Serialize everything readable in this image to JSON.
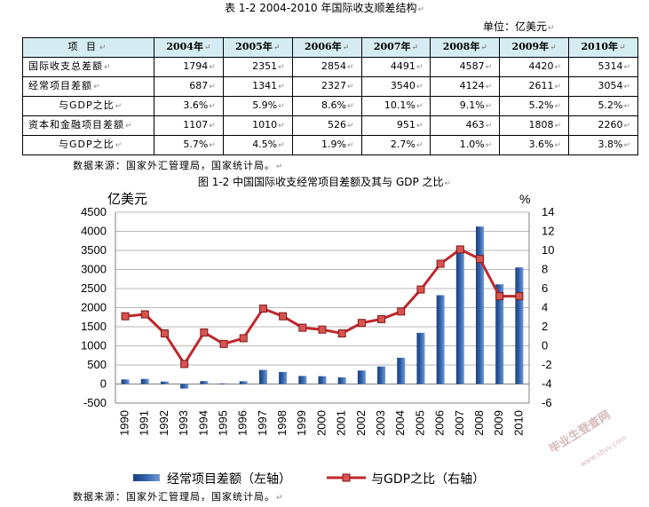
{
  "table": {
    "title": "表 1-2 2004-2010 年国际收支顺差结构",
    "unit": "单位：亿美元",
    "header_label": "项 目",
    "years": [
      "2004年",
      "2005年",
      "2006年",
      "2007年",
      "2008年",
      "2009年",
      "2010年"
    ],
    "rows": [
      {
        "label": "国际收支总差额",
        "values": [
          "1794",
          "2351",
          "2854",
          "4491",
          "4587",
          "4420",
          "5314"
        ]
      },
      {
        "label": "经常项目差额",
        "values": [
          "687",
          "1341",
          "2327",
          "3540",
          "4124",
          "2611",
          "3054"
        ]
      },
      {
        "label": "与GDP之比",
        "values": [
          "3.6%",
          "5.9%",
          "8.6%",
          "10.1%",
          "9.1%",
          "5.2%",
          "5.2%"
        ]
      },
      {
        "label": "资本和金融项目差额",
        "values": [
          "1107",
          "1010",
          "526",
          "951",
          "463",
          "1808",
          "2260"
        ]
      },
      {
        "label": "与GDP之比",
        "values": [
          "5.7%",
          "4.5%",
          "1.9%",
          "2.7%",
          "1.0%",
          "3.6%",
          "3.8%"
        ]
      }
    ],
    "source": "数据来源：国家外汇管理局，国家统计局。"
  },
  "figure": {
    "title": "图 1-2 中国国际收支经常项目差额及其与 GDP 之比",
    "source": "数据来源：国家外汇管理局，国家统计局。"
  },
  "watermark": {
    "text": "毕业生登查网",
    "sub": "www.sbvv.com"
  },
  "colors": {
    "bar": "#2f5fa8",
    "line": "#c0282d",
    "marker": "#c0282d",
    "header_bg": "#d5edf2",
    "grid": "#b8b8b8"
  },
  "chart_data": {
    "type": "bar+line",
    "x": [
      "1990",
      "1991",
      "1992",
      "1993",
      "1994",
      "1995",
      "1996",
      "1997",
      "1998",
      "1999",
      "2000",
      "2001",
      "2002",
      "2003",
      "2004",
      "2005",
      "2006",
      "2007",
      "2008",
      "2009",
      "2010"
    ],
    "series": [
      {
        "name": "经常项目差额（左轴）",
        "type": "bar",
        "axis": "left",
        "values": [
          120,
          133,
          64,
          -119,
          77,
          16,
          72,
          370,
          315,
          211,
          205,
          174,
          354,
          459,
          687,
          1341,
          2327,
          3540,
          4124,
          2611,
          3054
        ]
      },
      {
        "name": "与GDP之比（右轴）",
        "type": "line",
        "axis": "right",
        "values": [
          3.1,
          3.3,
          1.3,
          -1.9,
          1.4,
          0.2,
          0.8,
          3.9,
          3.1,
          1.9,
          1.7,
          1.3,
          2.4,
          2.8,
          3.6,
          5.9,
          8.6,
          10.1,
          9.1,
          5.2,
          5.2
        ]
      }
    ],
    "ylabel_left": "亿美元",
    "ylabel_right": "%",
    "ylim_left": [
      -500,
      4500
    ],
    "yticks_left": [
      -500,
      0,
      500,
      1000,
      1500,
      2000,
      2500,
      3000,
      3500,
      4000,
      4500
    ],
    "ylim_right": [
      -6,
      14
    ],
    "yticks_right": [
      -6,
      -4,
      -2,
      0,
      2,
      4,
      6,
      8,
      10,
      12,
      14
    ],
    "grid": true,
    "legend": "bottom"
  }
}
